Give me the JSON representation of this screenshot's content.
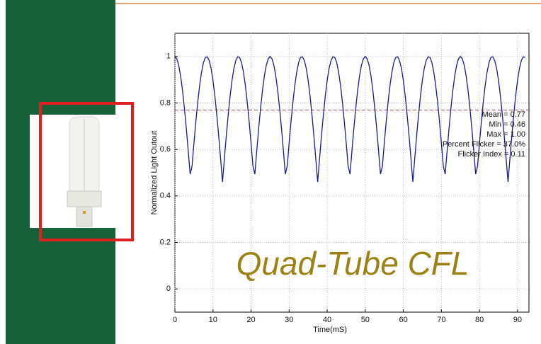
{
  "chart_data": {
    "type": "line",
    "ylabel": "Normalized Light Outout",
    "xlabel": "Time(mS)",
    "overlay_title": "Quad-Tube CFL",
    "annotations": [
      "Mean = 0.77",
      "Min = 0.46",
      "Max = 1.00",
      "Percent Flicker = 37.0%",
      "Flicker Index = 0.11"
    ],
    "mean_line": 0.77,
    "xlim": [
      0,
      93
    ],
    "ylim": [
      -0.1,
      1.1
    ],
    "xticks": [
      0,
      10,
      20,
      30,
      40,
      50,
      60,
      70,
      80,
      90
    ],
    "yticks": [
      0,
      0.2,
      0.4,
      0.6,
      0.8,
      1
    ],
    "grid": true,
    "x": [
      0,
      0.5,
      1,
      1.5,
      2,
      2.5,
      3,
      3.5,
      4,
      4.5,
      5,
      5.5,
      6,
      6.5,
      7,
      7.5,
      8,
      8.5,
      9,
      9.5,
      10,
      10.5,
      11,
      11.5,
      12,
      12.5,
      13,
      13.5,
      14,
      14.5,
      15,
      15.5,
      16,
      16.5,
      17,
      17.5,
      18,
      18.5,
      19,
      19.5,
      20,
      20.5,
      21,
      21.5,
      22,
      22.5,
      23,
      23.5,
      24,
      24.5,
      25,
      25.5,
      26,
      26.5,
      27,
      27.5,
      28,
      28.5,
      29,
      29.5,
      30,
      30.5,
      31,
      31.5,
      32,
      32.5,
      33,
      33.5,
      34,
      34.5,
      35,
      35.5,
      36,
      36.5,
      37,
      37.5,
      38,
      38.5,
      39,
      39.5,
      40,
      40.5,
      41,
      41.5,
      42,
      42.5,
      43,
      43.5,
      44,
      44.5,
      45,
      45.5,
      46,
      46.5,
      47,
      47.5,
      48,
      48.5,
      49,
      49.5,
      50,
      50.5,
      51,
      51.5,
      52,
      52.5,
      53,
      53.5,
      54,
      54.5,
      55,
      55.5,
      56,
      56.5,
      57,
      57.5,
      58,
      58.5,
      59,
      59.5,
      60,
      60.5,
      61,
      61.5,
      62,
      62.5,
      63,
      63.5,
      64,
      64.5,
      65,
      65.5,
      66,
      66.5,
      67,
      67.5,
      68,
      68.5,
      69,
      69.5,
      70,
      70.5,
      71,
      71.5,
      72,
      72.5,
      73,
      73.5,
      74,
      74.5,
      75,
      75.5,
      76,
      76.5,
      77,
      77.5,
      78,
      78.5,
      79,
      79.5,
      80,
      80.5,
      81,
      81.5,
      82,
      82.5,
      83,
      83.5,
      84,
      84.5,
      85,
      85.5,
      86,
      86.5,
      87,
      87.5,
      88,
      88.5,
      89,
      89.5,
      90,
      90.5,
      91,
      91.5,
      92
    ],
    "series": [
      {
        "color": "#1a1a8c",
        "values": [
          1.0,
          0.99,
          0.962,
          0.916,
          0.854,
          0.777,
          0.69,
          0.594,
          0.494,
          0.528,
          0.627,
          0.72,
          0.804,
          0.876,
          0.933,
          0.974,
          0.996,
          0.999,
          0.983,
          0.949,
          0.897,
          0.83,
          0.749,
          0.659,
          0.561,
          0.46,
          0.561,
          0.659,
          0.749,
          0.83,
          0.897,
          0.949,
          0.983,
          0.999,
          0.996,
          0.974,
          0.933,
          0.876,
          0.804,
          0.72,
          0.627,
          0.528,
          0.494,
          0.594,
          0.69,
          0.777,
          0.854,
          0.916,
          0.962,
          0.99,
          1.0,
          0.99,
          0.962,
          0.916,
          0.854,
          0.777,
          0.69,
          0.594,
          0.494,
          0.528,
          0.627,
          0.72,
          0.804,
          0.876,
          0.933,
          0.974,
          0.996,
          0.999,
          0.983,
          0.949,
          0.897,
          0.83,
          0.749,
          0.659,
          0.561,
          0.46,
          0.561,
          0.659,
          0.749,
          0.83,
          0.897,
          0.949,
          0.983,
          0.999,
          0.996,
          0.974,
          0.933,
          0.876,
          0.804,
          0.72,
          0.627,
          0.528,
          0.494,
          0.594,
          0.69,
          0.777,
          0.854,
          0.916,
          0.962,
          0.99,
          1.0,
          0.99,
          0.962,
          0.916,
          0.854,
          0.777,
          0.69,
          0.594,
          0.494,
          0.528,
          0.627,
          0.72,
          0.804,
          0.876,
          0.933,
          0.974,
          0.996,
          0.999,
          0.983,
          0.949,
          0.897,
          0.83,
          0.749,
          0.659,
          0.561,
          0.46,
          0.561,
          0.659,
          0.749,
          0.83,
          0.897,
          0.949,
          0.983,
          0.999,
          0.996,
          0.974,
          0.933,
          0.876,
          0.804,
          0.72,
          0.627,
          0.528,
          0.494,
          0.594,
          0.69,
          0.777,
          0.854,
          0.916,
          0.962,
          0.99,
          1.0,
          0.99,
          0.962,
          0.916,
          0.854,
          0.777,
          0.69,
          0.594,
          0.494,
          0.528,
          0.627,
          0.72,
          0.804,
          0.876,
          0.933,
          0.974,
          0.996,
          0.999,
          0.983,
          0.949,
          0.897,
          0.83,
          0.749,
          0.659,
          0.561,
          0.46,
          0.561,
          0.659,
          0.749,
          0.83,
          0.897,
          0.949,
          0.983,
          0.999,
          0.996
        ]
      }
    ]
  }
}
